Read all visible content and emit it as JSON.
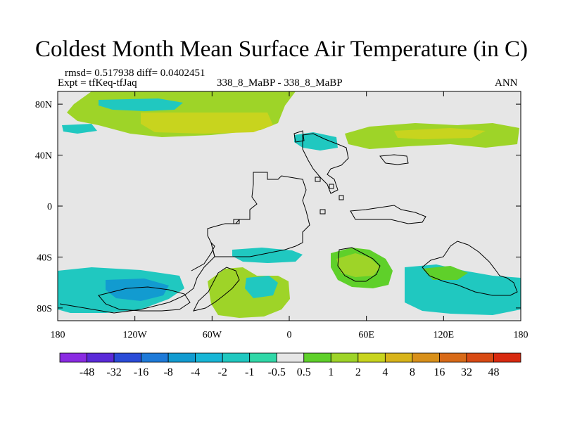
{
  "header": {
    "title": "Coldest Month Mean Surface Air Temperature (in C)",
    "rmsd_line": "rmsd= 0.517938 diff= 0.0402451",
    "expt_line": "Expt = tfKeq-tfJaq",
    "center_label": "338_8_MaBP - 338_8_MaBP",
    "season": "ANN"
  },
  "map": {
    "projection": "equirectangular",
    "lon_range": [
      -180,
      180
    ],
    "lat_range": [
      -90,
      90
    ],
    "x_ticks": [
      {
        "lon": -180,
        "label": "180"
      },
      {
        "lon": -120,
        "label": "120W"
      },
      {
        "lon": -60,
        "label": "60W"
      },
      {
        "lon": 0,
        "label": "0"
      },
      {
        "lon": 60,
        "label": "60E"
      },
      {
        "lon": 120,
        "label": "120E"
      },
      {
        "lon": 180,
        "label": "180"
      }
    ],
    "y_ticks": [
      {
        "lat": 80,
        "label": "80N"
      },
      {
        "lat": 40,
        "label": "40N"
      },
      {
        "lat": 0,
        "label": "0"
      },
      {
        "lat": -40,
        "label": "40S"
      },
      {
        "lat": -80,
        "label": "80S"
      }
    ],
    "background_color": "#e6e6e6",
    "coastline_color": "#000000"
  },
  "colorbar": {
    "colors": [
      "#8a2be2",
      "#5a2ad8",
      "#2a4bd7",
      "#1e7ad8",
      "#129bd0",
      "#18b6d6",
      "#20c8c0",
      "#30d8a8",
      "#e6e6e6",
      "#5fd02a",
      "#9ed428",
      "#c8d41e",
      "#d8b41a",
      "#d8901a",
      "#d86a18",
      "#d84a14",
      "#d82a10"
    ],
    "labels": [
      "-48",
      "-32",
      "-16",
      "-8",
      "-4",
      "-2",
      "-1",
      "-0.5",
      "0.5",
      "1",
      "2",
      "4",
      "8",
      "16",
      "32",
      "48"
    ]
  }
}
